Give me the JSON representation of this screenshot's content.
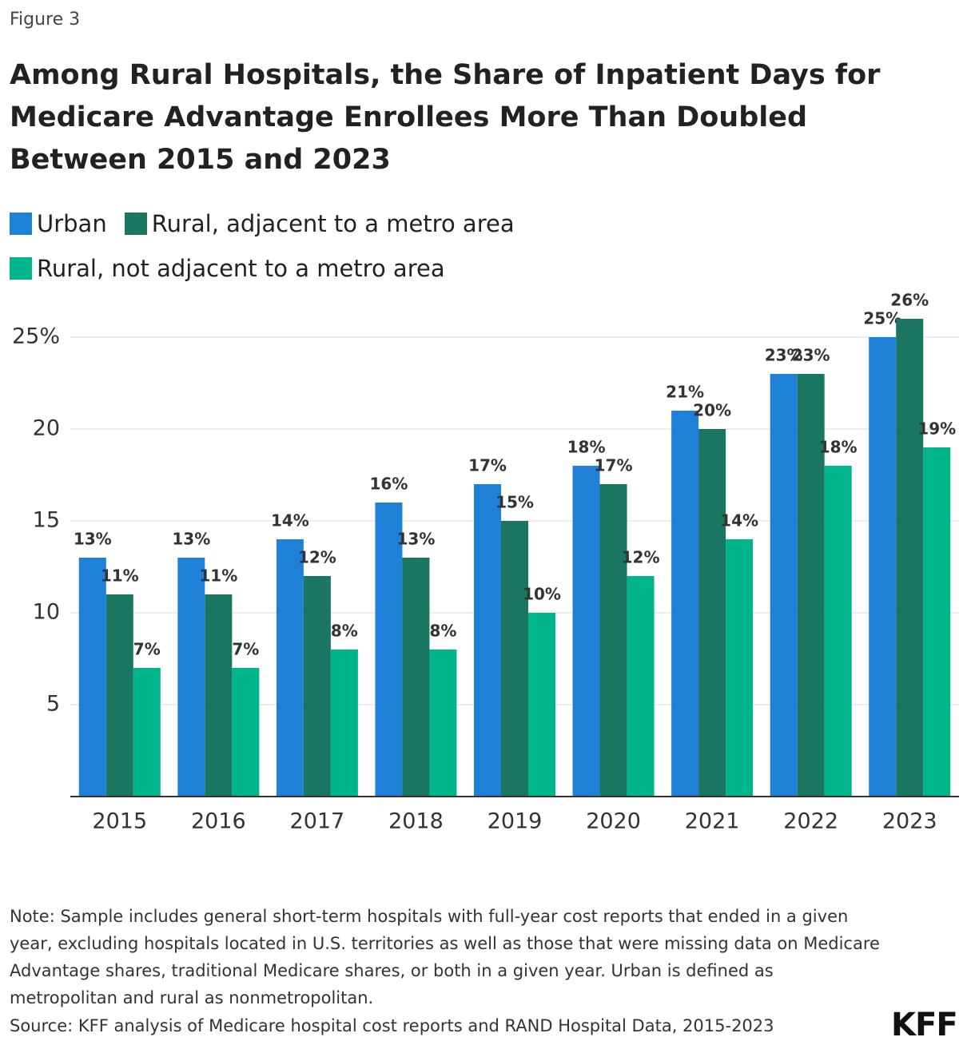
{
  "figure_label": "Figure 3",
  "note": "Note: Sample includes general short-term hospitals with full-year cost reports that ended in a given year, excluding hospitals located in U.S. territories as well as those that were missing data on Medicare Advantage shares, traditional Medicare shares, or both in a given year. Urban is defined as metropolitan and rural as nonmetropolitan.",
  "source": "Source: KFF analysis of Medicare hospital cost reports and RAND Hospital Data, 2015-2023",
  "logo": "KFF",
  "chart_data": {
    "type": "bar",
    "title": "Among Rural Hospitals, the Share of Inpatient Days for Medicare Advantage Enrollees More Than Doubled Between 2015 and 2023",
    "categories": [
      "2015",
      "2016",
      "2017",
      "2018",
      "2019",
      "2020",
      "2021",
      "2022",
      "2023"
    ],
    "series": [
      {
        "name": "Urban",
        "color": "#1f80d8",
        "values": [
          13,
          13,
          14,
          16,
          17,
          18,
          21,
          23,
          25
        ],
        "value_labels": [
          "13%",
          "13%",
          "14%",
          "16%",
          "17%",
          "18%",
          "21%",
          "23%",
          "25%"
        ]
      },
      {
        "name": "Rural, adjacent to a metro area",
        "color": "#1a7661",
        "values": [
          11,
          11,
          12,
          13,
          15,
          17,
          20,
          23,
          26
        ],
        "value_labels": [
          "11%",
          "11%",
          "12%",
          "13%",
          "15%",
          "17%",
          "20%",
          "23%",
          "26%"
        ]
      },
      {
        "name": "Rural, not adjacent to a metro area",
        "color": "#00b48b",
        "values": [
          7,
          7,
          8,
          8,
          10,
          12,
          14,
          18,
          19
        ],
        "value_labels": [
          "7%",
          "7%",
          "8%",
          "8%",
          "10%",
          "12%",
          "14%",
          "18%",
          "19%"
        ]
      }
    ],
    "ylim": [
      0,
      27
    ],
    "yticks": [
      5,
      10,
      15,
      20,
      {
        "value": 25,
        "label": "25%"
      }
    ],
    "grid": true
  }
}
